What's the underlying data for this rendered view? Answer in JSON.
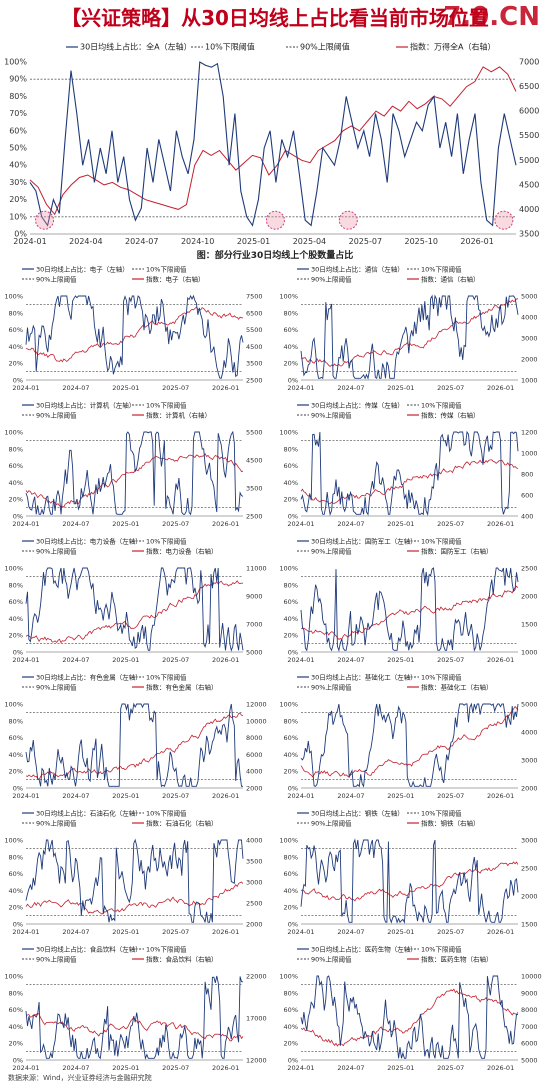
{
  "header": {
    "title": "【兴证策略】从30日均线上占比看当前市场位置",
    "watermark": "7.0.CN"
  },
  "caption": "图：部分行业30日均线上个股数量占比",
  "source": "数据来源：Wind，兴业证券经济与金融研究院",
  "colors": {
    "share": "#1f3a7a",
    "index": "#c3202f",
    "threshold": "#666666",
    "marker": "#d0407a"
  },
  "chart_data": [
    {
      "type": "line",
      "legend": [
        "30日均线上占比：全A（左轴）",
        "10%下限阈值",
        "90%上限阈值",
        "指数：万得全A（右轴）"
      ],
      "x_ticks": [
        "2024-01",
        "2024-04",
        "2024-07",
        "2024-10",
        "2025-01",
        "2025-04",
        "2025-07",
        "2025-10",
        "2026-01"
      ],
      "y_left_ticks": [
        "0%",
        "10%",
        "20%",
        "30%",
        "40%",
        "50%",
        "60%",
        "70%",
        "80%",
        "90%",
        "100%"
      ],
      "y_right": [
        3500,
        7000
      ],
      "y_right_ticks": [
        "3500",
        "4000",
        "4500",
        "5000",
        "5500",
        "6000",
        "6500",
        "7000"
      ],
      "thresholds": [
        10,
        90
      ],
      "share_pts": [
        30,
        25,
        10,
        5,
        20,
        12,
        55,
        95,
        70,
        40,
        55,
        30,
        50,
        35,
        60,
        30,
        45,
        20,
        8,
        15,
        50,
        30,
        55,
        40,
        25,
        60,
        45,
        35,
        55,
        100,
        98,
        97,
        99,
        80,
        40,
        70,
        25,
        10,
        5,
        20,
        50,
        60,
        30,
        55,
        45,
        60,
        35,
        8,
        5,
        25,
        50,
        45,
        40,
        55,
        80,
        65,
        50,
        60,
        45,
        70,
        55,
        30,
        70,
        60,
        45,
        55,
        65,
        60,
        75,
        80,
        50,
        65,
        45,
        70,
        35,
        55,
        70,
        30,
        8,
        5,
        50,
        70,
        55,
        40
      ],
      "index_pts": [
        4600,
        4450,
        4100,
        3900,
        4300,
        4500,
        4650,
        4700,
        4600,
        4500,
        4550,
        4450,
        4400,
        4300,
        4200,
        4150,
        4100,
        4050,
        4000,
        4100,
        4900,
        5200,
        5100,
        5200,
        5000,
        4800,
        4950,
        5100,
        5050,
        4700,
        4900,
        5200,
        5100,
        5000,
        4950,
        5200,
        5300,
        5400,
        5600,
        5700,
        5600,
        5800,
        6000,
        5900,
        6100,
        6000,
        6200,
        6050,
        6150,
        6300,
        6250,
        6100,
        6300,
        6500,
        6600,
        6900,
        6800,
        6900,
        6750,
        6400
      ],
      "markers": [
        0.03,
        0.505,
        0.655,
        0.975
      ]
    },
    {
      "type": "line",
      "legend": [
        "30日均线上占比：电子（左轴）",
        "10%下限阈值",
        "90%上限阈值",
        "指数：电子（右轴）"
      ],
      "x_ticks": [
        "2024-01",
        "2024-07",
        "2025-01",
        "2025-07",
        "2026-01"
      ],
      "y_left_ticks": [
        "0%",
        "20%",
        "40%",
        "60%",
        "80%",
        "100%"
      ],
      "y_right": [
        2500,
        7500
      ],
      "y_right_ticks": [
        "2500",
        "3500",
        "4500",
        "5500",
        "6500",
        "7500"
      ],
      "thresholds": [
        10,
        90
      ],
      "seed": 1,
      "trend": [
        0.35,
        0.2,
        0.4,
        0.55,
        0.7,
        0.85,
        0.72
      ]
    },
    {
      "type": "line",
      "legend": [
        "30日均线上占比：通信（左轴）",
        "10%下限阈值",
        "90%上限阈值",
        "指数：通信（右轴）"
      ],
      "x_ticks": [
        "2024-01",
        "2024-07",
        "2025-01",
        "2025-07",
        "2026-01"
      ],
      "y_left_ticks": [
        "0%",
        "20%",
        "40%",
        "60%",
        "80%",
        "100%"
      ],
      "y_right": [
        1000,
        5000
      ],
      "y_right_ticks": [
        "1000",
        "2000",
        "3000",
        "4000",
        "5000"
      ],
      "thresholds": [
        10,
        90
      ],
      "seed": 2,
      "trend": [
        0.25,
        0.2,
        0.3,
        0.4,
        0.6,
        0.8,
        0.95
      ]
    },
    {
      "type": "line",
      "legend": [
        "30日均线上占比：计算机（左轴）",
        "10%下限阈值",
        "90%上限阈值",
        "指数：计算机（右轴）"
      ],
      "x_ticks": [
        "2024-01",
        "2024-07",
        "2025-01",
        "2025-07",
        "2026-01"
      ],
      "y_left_ticks": [
        "0%",
        "20%",
        "40%",
        "60%",
        "80%",
        "100%"
      ],
      "y_right": [
        2500,
        5500
      ],
      "y_right_ticks": [
        "2500",
        "3500",
        "4500",
        "5500"
      ],
      "thresholds": [
        10,
        90
      ],
      "seed": 3,
      "trend": [
        0.3,
        0.12,
        0.3,
        0.55,
        0.7,
        0.72,
        0.6
      ]
    },
    {
      "type": "line",
      "legend": [
        "30日均线上占比：传媒（左轴）",
        "10%下限阈值",
        "90%上限阈值",
        "指数：传媒（右轴）"
      ],
      "x_ticks": [
        "2024-01",
        "2024-07",
        "2025-01",
        "2025-07",
        "2026-01"
      ],
      "y_left_ticks": [
        "0%",
        "20%",
        "40%",
        "60%",
        "80%",
        "100%"
      ],
      "y_right": [
        400,
        1200
      ],
      "y_right_ticks": [
        "400",
        "600",
        "800",
        "1000",
        "1200"
      ],
      "thresholds": [
        10,
        90
      ],
      "seed": 4,
      "trend": [
        0.3,
        0.15,
        0.25,
        0.45,
        0.55,
        0.65,
        0.58
      ]
    },
    {
      "type": "line",
      "legend": [
        "30日均线上占比：电力设备（左轴）",
        "10%下限阈值",
        "90%上限阈值",
        "指数：电力设备（右轴）"
      ],
      "x_ticks": [
        "2024-01",
        "2024-07",
        "2025-01",
        "2025-07",
        "2026-01"
      ],
      "y_left_ticks": [
        "0%",
        "20%",
        "40%",
        "60%",
        "80%",
        "100%"
      ],
      "y_right": [
        5000,
        11000
      ],
      "y_right_ticks": [
        "5000",
        "7000",
        "9000",
        "11000"
      ],
      "thresholds": [
        10,
        90
      ],
      "seed": 5,
      "trend": [
        0.2,
        0.1,
        0.25,
        0.3,
        0.55,
        0.8,
        0.85
      ]
    },
    {
      "type": "line",
      "legend": [
        "30日均线上占比：国防军工（左轴）",
        "10%下限阈值",
        "90%上限阈值",
        "指数：国防军工（右轴）"
      ],
      "x_ticks": [
        "2024-01",
        "2024-07",
        "2025-01",
        "2025-07",
        "2026-01"
      ],
      "y_left_ticks": [
        "0%",
        "20%",
        "40%",
        "60%",
        "80%",
        "100%"
      ],
      "y_right": [
        1000,
        2500
      ],
      "y_right_ticks": [
        "1000",
        "1500",
        "2000",
        "2500"
      ],
      "thresholds": [
        10,
        90
      ],
      "seed": 6,
      "trend": [
        0.3,
        0.2,
        0.35,
        0.45,
        0.55,
        0.65,
        0.75
      ]
    },
    {
      "type": "line",
      "legend": [
        "30日均线上占比：有色金属（左轴）",
        "10%下限阈值",
        "90%上限阈值",
        "指数：有色金属（右轴）"
      ],
      "x_ticks": [
        "2024-01",
        "2024-07",
        "2025-01",
        "2025-07",
        "2026-01"
      ],
      "y_left_ticks": [
        "0%",
        "20%",
        "40%",
        "60%",
        "80%",
        "100%"
      ],
      "y_right": [
        2000,
        12000
      ],
      "y_right_ticks": [
        "2000",
        "4000",
        "6000",
        "8000",
        "10000",
        "12000"
      ],
      "thresholds": [
        10,
        90
      ],
      "seed": 7,
      "trend": [
        0.12,
        0.18,
        0.2,
        0.25,
        0.45,
        0.7,
        0.9
      ]
    },
    {
      "type": "line",
      "legend": [
        "30日均线上占比：基础化工（左轴）",
        "10%下限阈值",
        "90%上限阈值",
        "指数：基础化工（右轴）"
      ],
      "x_ticks": [
        "2024-01",
        "2024-07",
        "2025-01",
        "2025-07",
        "2026-01"
      ],
      "y_left_ticks": [
        "0%",
        "20%",
        "40%",
        "60%",
        "80%",
        "100%"
      ],
      "y_right": [
        2000,
        5000
      ],
      "y_right_ticks": [
        "2000",
        "3000",
        "4000",
        "5000"
      ],
      "thresholds": [
        10,
        90
      ],
      "seed": 8,
      "trend": [
        0.25,
        0.15,
        0.2,
        0.3,
        0.5,
        0.7,
        0.9
      ]
    },
    {
      "type": "line",
      "legend": [
        "30日均线上占比：石油石化（左轴）",
        "10%下限阈值",
        "90%上限阈值",
        "指数：石油石化（右轴）"
      ],
      "x_ticks": [
        "2024-01",
        "2024-07",
        "2025-01",
        "2025-07",
        "2026-01"
      ],
      "y_left_ticks": [
        "0%",
        "20%",
        "40%",
        "60%",
        "80%",
        "100%"
      ],
      "y_right": [
        2000,
        4000
      ],
      "y_right_ticks": [
        "2000",
        "2500",
        "3000",
        "3500",
        "4000"
      ],
      "thresholds": [
        10,
        90
      ],
      "seed": 9,
      "trend": [
        0.2,
        0.25,
        0.15,
        0.2,
        0.25,
        0.3,
        0.5
      ]
    },
    {
      "type": "line",
      "legend": [
        "30日均线上占比：钢铁（左轴）",
        "10%下限阈值",
        "90%上限阈值",
        "指数：钢铁（右轴）"
      ],
      "x_ticks": [
        "2024-01",
        "2024-07",
        "2025-01",
        "2025-07",
        "2026-01"
      ],
      "y_left_ticks": [
        "0%",
        "20%",
        "40%",
        "60%",
        "80%",
        "100%"
      ],
      "y_right": [
        1500,
        3000
      ],
      "y_right_ticks": [
        "1500",
        "2000",
        "2500",
        "3000"
      ],
      "thresholds": [
        10,
        90
      ],
      "seed": 10,
      "trend": [
        0.4,
        0.25,
        0.35,
        0.4,
        0.5,
        0.6,
        0.72
      ]
    },
    {
      "type": "line",
      "legend": [
        "30日均线上占比：食品饮料（左轴）",
        "10%下限阈值",
        "90%上限阈值",
        "指数：食品饮料（右轴）"
      ],
      "x_ticks": [
        "2024-01",
        "2024-07",
        "2025-01",
        "2025-07",
        "2026-01"
      ],
      "y_left_ticks": [
        "0%",
        "20%",
        "40%",
        "60%",
        "80%",
        "100%"
      ],
      "y_right": [
        12000,
        22000
      ],
      "y_right_ticks": [
        "12000",
        "17000",
        "22000"
      ],
      "thresholds": [
        10,
        90
      ],
      "seed": 11,
      "trend": [
        0.55,
        0.4,
        0.35,
        0.45,
        0.38,
        0.3,
        0.25
      ]
    },
    {
      "type": "line",
      "legend": [
        "30日均线上占比：医药生物（左轴）",
        "10%下限阈值",
        "90%上限阈值",
        "指数：医药生物（右轴）"
      ],
      "x_ticks": [
        "2024-01",
        "2024-07",
        "2025-01",
        "2025-07",
        "2026-01"
      ],
      "y_left_ticks": [
        "0%",
        "20%",
        "40%",
        "60%",
        "80%",
        "100%"
      ],
      "y_right": [
        5000,
        10000
      ],
      "y_right_ticks": [
        "5000",
        "6000",
        "7000",
        "8000",
        "9000",
        "10000"
      ],
      "thresholds": [
        10,
        90
      ],
      "seed": 12,
      "trend": [
        0.4,
        0.2,
        0.3,
        0.35,
        0.8,
        0.7,
        0.6
      ]
    }
  ]
}
